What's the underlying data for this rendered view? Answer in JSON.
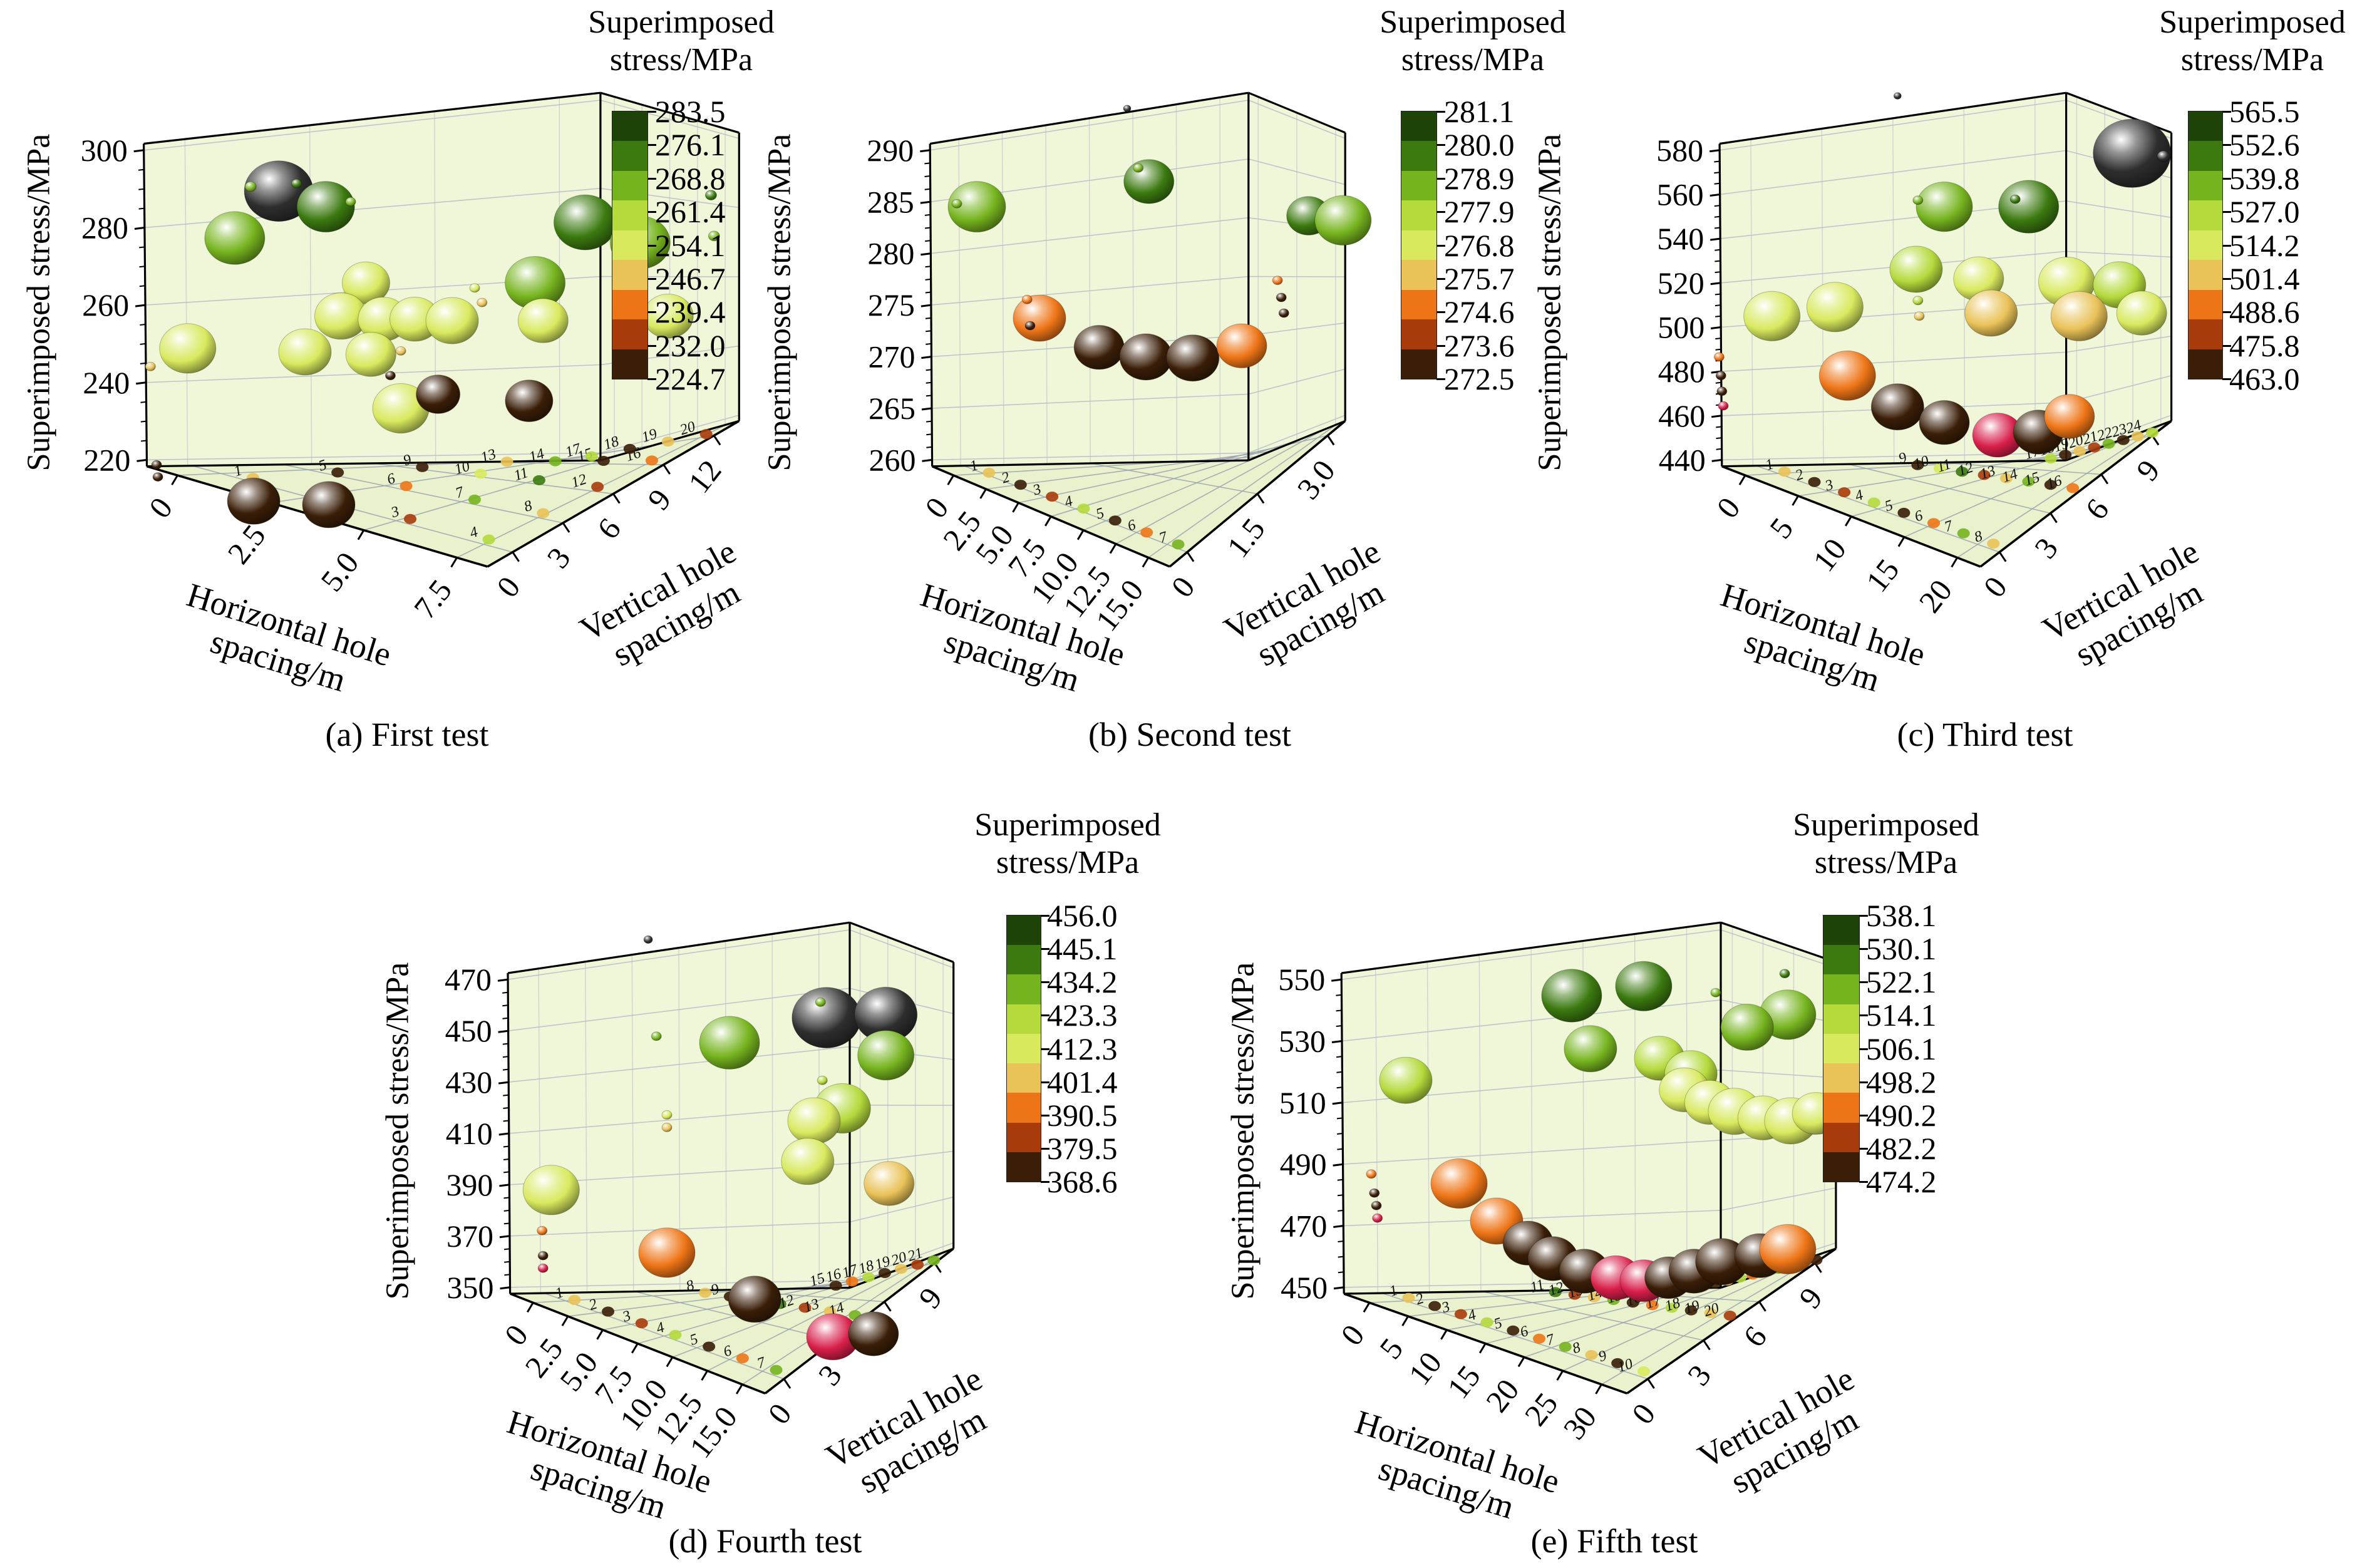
{
  "figure_background": "#ffffff",
  "palette": [
    "#1d4308",
    "#3c7a10",
    "#76b41f",
    "#b4da3c",
    "#d9e95e",
    "#e9c258",
    "#ee7517",
    "#a83b0c",
    "#3a1e08",
    "#2e2e2e",
    "#d81f4a"
  ],
  "wall_color": "#f0f7d9",
  "floor_color": "#e9f2cc",
  "chart_data": [
    {
      "id": "a",
      "type": "bubble3d",
      "caption": "(a) First test",
      "xlabel": "Horizontal hole spacing/m",
      "ylabel": "Vertical hole spacing/m",
      "zlabel": "Superimposed stress/MPa",
      "xticks": [
        "0",
        "2.5",
        "5.0",
        "7.5"
      ],
      "yticks": [
        "0",
        "3",
        "6",
        "9",
        "12"
      ],
      "zticks": [
        "300",
        "280",
        "260",
        "240",
        "220"
      ],
      "zrange": [
        220,
        300
      ],
      "colorbar": {
        "title_lines": [
          "Superimposed",
          "stress/MPa"
        ],
        "ticks": [
          "283.5",
          "276.1",
          "268.8",
          "261.4",
          "254.1",
          "246.7",
          "239.4",
          "232.0",
          "224.7"
        ]
      },
      "floor_markers": {
        "cols": 4,
        "rows": 5
      },
      "points": [
        [
          0.236,
          0.199,
          55,
          9
        ],
        [
          0.313,
          0.23,
          46,
          1
        ],
        [
          0.164,
          0.292,
          48,
          2
        ],
        [
          0.19,
          0.19,
          9,
          2
        ],
        [
          0.265,
          0.184,
          8,
          1
        ],
        [
          0.354,
          0.22,
          8,
          2
        ],
        [
          0.738,
          0.261,
          50,
          1
        ],
        [
          0.828,
          0.301,
          48,
          2
        ],
        [
          0.944,
          0.207,
          9,
          1
        ],
        [
          0.949,
          0.288,
          9,
          2
        ],
        [
          0.656,
          0.381,
          48,
          2
        ],
        [
          0.379,
          0.381,
          38,
          4
        ],
        [
          0.338,
          0.447,
          42,
          4
        ],
        [
          0.407,
          0.453,
          40,
          4
        ],
        [
          0.459,
          0.453,
          40,
          4
        ],
        [
          0.52,
          0.456,
          42,
          4
        ],
        [
          0.669,
          0.456,
          40,
          4
        ],
        [
          0.874,
          0.447,
          40,
          4
        ],
        [
          0.087,
          0.511,
          45,
          4
        ],
        [
          0.279,
          0.518,
          42,
          4
        ],
        [
          0.387,
          0.523,
          40,
          4
        ],
        [
          0.436,
          0.63,
          45,
          4
        ],
        [
          0.497,
          0.602,
          35,
          8
        ],
        [
          0.646,
          0.615,
          38,
          8
        ],
        [
          0.195,
          0.814,
          42,
          8
        ],
        [
          0.318,
          0.821,
          42,
          8
        ],
        [
          0.026,
          0.547,
          8,
          5
        ],
        [
          0.036,
          0.742,
          8,
          8
        ],
        [
          0.038,
          0.766,
          8,
          8
        ],
        [
          0.419,
          0.565,
          8,
          8
        ],
        [
          0.557,
          0.391,
          8,
          4
        ],
        [
          0.436,
          0.516,
          8,
          5
        ],
        [
          0.569,
          0.42,
          8,
          5
        ]
      ]
    },
    {
      "id": "b",
      "type": "bubble3d",
      "caption": "(b) Second test",
      "xlabel": "Horizontal hole spacing/m",
      "ylabel": "Vertical hole spacing/m",
      "zlabel": "Superimposed stress/MPa",
      "xticks": [
        "0",
        "2.5",
        "5.0",
        "7.5",
        "10.0",
        "12.5",
        "15.0"
      ],
      "yticks": [
        "0",
        "1.5",
        "3.0"
      ],
      "zticks": [
        "290",
        "285",
        "280",
        "275",
        "270",
        "265",
        "260"
      ],
      "zrange": [
        260,
        290
      ],
      "colorbar": {
        "title_lines": [
          "Superimposed",
          "stress/MPa"
        ],
        "ticks": [
          "281.1",
          "280.0",
          "278.9",
          "277.9",
          "276.8",
          "275.7",
          "274.6",
          "273.6",
          "272.5"
        ]
      },
      "floor_markers": {
        "cols": 7,
        "rows": 1
      },
      "points": [
        [
          0.125,
          0.23,
          46,
          2
        ],
        [
          0.078,
          0.224,
          8,
          2
        ],
        [
          0.529,
          0.18,
          40,
          1
        ],
        [
          0.504,
          0.153,
          8,
          2
        ],
        [
          0.904,
          0.248,
          35,
          1
        ],
        [
          0.985,
          0.257,
          45,
          2
        ],
        [
          0.272,
          0.451,
          42,
          6
        ],
        [
          0.412,
          0.509,
          40,
          8
        ],
        [
          0.522,
          0.528,
          42,
          8
        ],
        [
          0.632,
          0.53,
          42,
          8
        ],
        [
          0.747,
          0.506,
          40,
          6
        ],
        [
          0.243,
          0.414,
          8,
          6
        ],
        [
          0.25,
          0.466,
          8,
          8
        ],
        [
          0.831,
          0.376,
          8,
          6
        ],
        [
          0.84,
          0.41,
          8,
          8
        ],
        [
          0.478,
          0.035,
          6,
          9
        ],
        [
          0.846,
          0.441,
          8,
          8
        ]
      ]
    },
    {
      "id": "c",
      "type": "bubble3d",
      "caption": "(c) Third test",
      "xlabel": "Horizontal hole spacing/m",
      "ylabel": "Vertical hole spacing/m",
      "zlabel": "Superimposed stress/MPa",
      "xticks": [
        "0",
        "5",
        "10",
        "15",
        "20"
      ],
      "yticks": [
        "0",
        "3",
        "6",
        "9"
      ],
      "zticks": [
        "580",
        "560",
        "540",
        "520",
        "500",
        "480",
        "460",
        "440"
      ],
      "zrange": [
        440,
        580
      ],
      "colorbar": {
        "title_lines": [
          "Superimposed",
          "stress/MPa"
        ],
        "ticks": [
          "565.5",
          "552.6",
          "539.8",
          "527.0",
          "514.2",
          "501.4",
          "488.6",
          "475.8",
          "463.0"
        ]
      },
      "floor_markers": {
        "cols": 8,
        "rows": 3
      },
      "points": [
        [
          0.905,
          0.124,
          62,
          9
        ],
        [
          0.973,
          0.13,
          10,
          9
        ],
        [
          0.399,
          0.01,
          6,
          9
        ],
        [
          0.5,
          0.23,
          45,
          2
        ],
        [
          0.682,
          0.23,
          48,
          1
        ],
        [
          0.443,
          0.217,
          8,
          2
        ],
        [
          0.653,
          0.215,
          8,
          1
        ],
        [
          0.439,
          0.354,
          42,
          3
        ],
        [
          0.574,
          0.373,
          40,
          4
        ],
        [
          0.764,
          0.379,
          45,
          4
        ],
        [
          0.878,
          0.385,
          42,
          3
        ],
        [
          0.264,
          0.429,
          45,
          4
        ],
        [
          0.601,
          0.441,
          42,
          5
        ],
        [
          0.791,
          0.447,
          45,
          5
        ],
        [
          0.926,
          0.441,
          40,
          4
        ],
        [
          0.128,
          0.447,
          45,
          4
        ],
        [
          0.291,
          0.565,
          45,
          6
        ],
        [
          0.399,
          0.627,
          42,
          8
        ],
        [
          0.5,
          0.658,
          40,
          8
        ],
        [
          0.615,
          0.683,
          40,
          10
        ],
        [
          0.703,
          0.677,
          40,
          8
        ],
        [
          0.77,
          0.646,
          40,
          6
        ],
        [
          0.014,
          0.528,
          8,
          6
        ],
        [
          0.018,
          0.565,
          8,
          8
        ],
        [
          0.02,
          0.596,
          8,
          8
        ],
        [
          0.023,
          0.625,
          8,
          10
        ],
        [
          0.443,
          0.416,
          8,
          3
        ],
        [
          0.446,
          0.447,
          8,
          5
        ]
      ]
    },
    {
      "id": "d",
      "type": "bubble3d",
      "caption": "(d) Fourth test",
      "xlabel": "Horizontal hole spacing/m",
      "ylabel": "Vertical hole spacing/m",
      "zlabel": "Superimposed stress/MPa",
      "xticks": [
        "0",
        "2.5",
        "5.0",
        "7.5",
        "10.0",
        "12.5",
        "15.0"
      ],
      "yticks": [
        "0",
        "3",
        "6",
        "9"
      ],
      "zticks": [
        "470",
        "450",
        "430",
        "410",
        "390",
        "370",
        "350"
      ],
      "zrange": [
        350,
        470
      ],
      "colorbar": {
        "title_lines": [
          "Superimposed",
          "stress/MPa"
        ],
        "ticks": [
          "456.0",
          "445.1",
          "434.2",
          "423.3",
          "412.3",
          "401.4",
          "390.5",
          "379.5",
          "368.6"
        ]
      },
      "floor_markers": {
        "cols": 7,
        "rows": 3
      },
      "points": [
        [
          0.712,
          0.194,
          55,
          9
        ],
        [
          0.842,
          0.188,
          50,
          9
        ],
        [
          0.322,
          0.038,
          7,
          9
        ],
        [
          0.5,
          0.244,
          48,
          2
        ],
        [
          0.842,
          0.269,
          45,
          2
        ],
        [
          0.34,
          0.231,
          8,
          2
        ],
        [
          0.699,
          0.163,
          8,
          2
        ],
        [
          0.747,
          0.375,
          45,
          3
        ],
        [
          0.685,
          0.4,
          42,
          4
        ],
        [
          0.11,
          0.538,
          45,
          4
        ],
        [
          0.671,
          0.481,
          42,
          4
        ],
        [
          0.849,
          0.525,
          40,
          5
        ],
        [
          0.363,
          0.663,
          45,
          6
        ],
        [
          0.555,
          0.756,
          42,
          8
        ],
        [
          0.726,
          0.831,
          42,
          10
        ],
        [
          0.815,
          0.825,
          40,
          8
        ],
        [
          0.09,
          0.619,
          8,
          6
        ],
        [
          0.092,
          0.669,
          8,
          8
        ],
        [
          0.092,
          0.694,
          8,
          10
        ],
        [
          0.363,
          0.388,
          8,
          4
        ],
        [
          0.363,
          0.413,
          8,
          5
        ],
        [
          0.703,
          0.319,
          8,
          3
        ]
      ]
    },
    {
      "id": "e",
      "type": "bubble3d",
      "caption": "(e) Fifth test",
      "xlabel": "Horizontal hole spacing/m",
      "ylabel": "Vertical hole spacing/m",
      "zlabel": "Superimposed stress/MPa",
      "xticks": [
        "0",
        "5",
        "10",
        "15",
        "20",
        "25",
        "30"
      ],
      "yticks": [
        "0",
        "3",
        "6",
        "9"
      ],
      "zticks": [
        "550",
        "530",
        "510",
        "490",
        "470",
        "450"
      ],
      "zrange": [
        450,
        550
      ],
      "colorbar": {
        "title_lines": [
          "Superimposed",
          "stress/MPa"
        ],
        "ticks": [
          "538.1",
          "530.1",
          "522.1",
          "514.1",
          "506.1",
          "498.2",
          "490.2",
          "482.2",
          "474.2"
        ]
      },
      "floor_markers": {
        "cols": 10,
        "rows": 3
      },
      "points": [
        [
          0.469,
          0.15,
          48,
          1
        ],
        [
          0.611,
          0.131,
          45,
          1
        ],
        [
          0.895,
          0.188,
          45,
          2
        ],
        [
          0.815,
          0.213,
          42,
          2
        ],
        [
          0.506,
          0.256,
          42,
          2
        ],
        [
          0.642,
          0.275,
          40,
          3
        ],
        [
          0.704,
          0.306,
          42,
          3
        ],
        [
          0.142,
          0.319,
          42,
          3
        ],
        [
          0.691,
          0.338,
          40,
          4
        ],
        [
          0.741,
          0.363,
          40,
          4
        ],
        [
          0.79,
          0.381,
          42,
          4
        ],
        [
          0.846,
          0.394,
          40,
          4
        ],
        [
          0.901,
          0.4,
          42,
          4
        ],
        [
          0.951,
          0.385,
          38,
          4
        ],
        [
          0.247,
          0.525,
          45,
          6
        ],
        [
          0.321,
          0.6,
          42,
          6
        ],
        [
          0.383,
          0.644,
          40,
          8
        ],
        [
          0.432,
          0.675,
          40,
          8
        ],
        [
          0.494,
          0.7,
          40,
          8
        ],
        [
          0.556,
          0.713,
          40,
          10
        ],
        [
          0.611,
          0.719,
          38,
          10
        ],
        [
          0.66,
          0.713,
          38,
          8
        ],
        [
          0.71,
          0.7,
          40,
          8
        ],
        [
          0.765,
          0.681,
          42,
          8
        ],
        [
          0.84,
          0.669,
          40,
          8
        ],
        [
          0.895,
          0.656,
          45,
          6
        ],
        [
          0.074,
          0.506,
          8,
          6
        ],
        [
          0.08,
          0.544,
          8,
          8
        ],
        [
          0.084,
          0.569,
          8,
          8
        ],
        [
          0.086,
          0.594,
          8,
          10
        ],
        [
          0.889,
          0.106,
          8,
          1
        ],
        [
          0.753,
          0.144,
          8,
          2
        ]
      ]
    }
  ]
}
